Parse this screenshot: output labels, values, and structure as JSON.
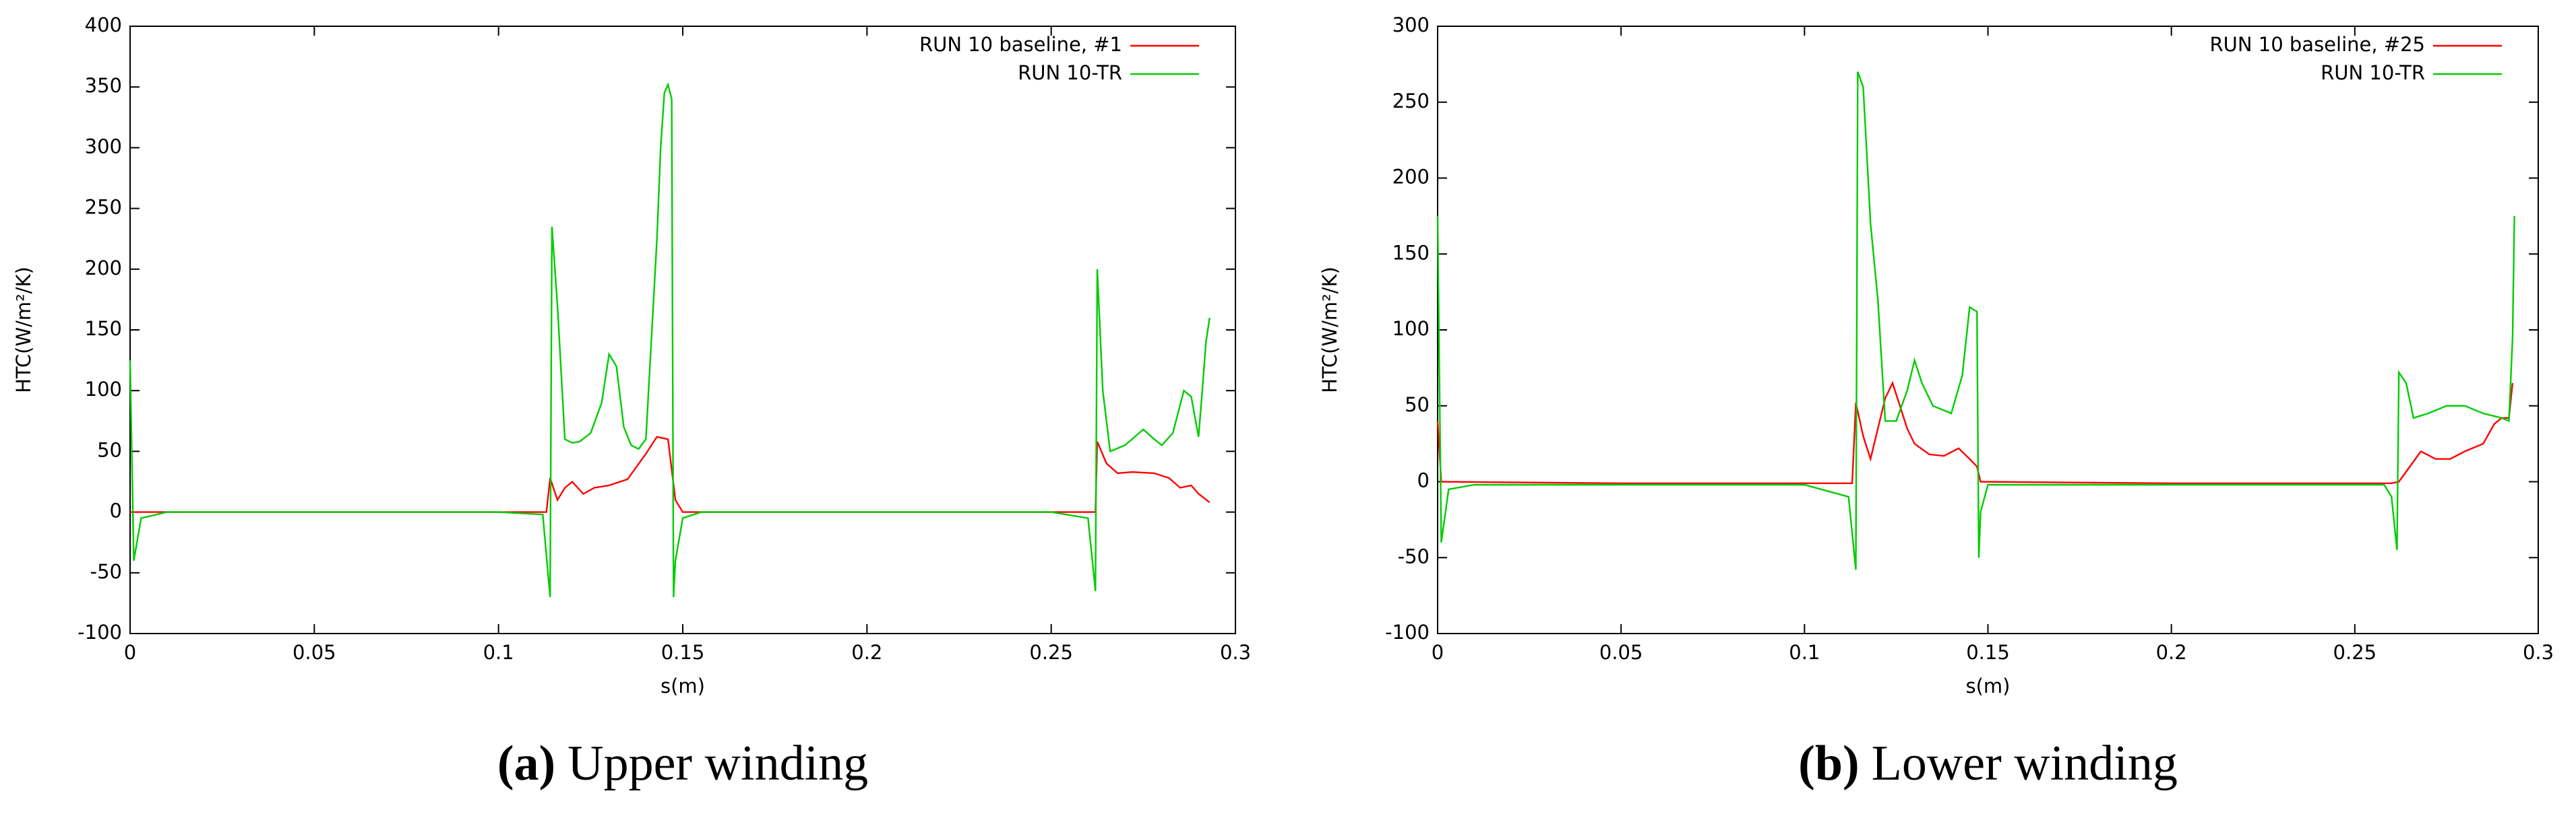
{
  "chart_data": [
    {
      "type": "line",
      "xlabel": "s(m)",
      "ylabel": "HTC(W/m²/K)",
      "caption": {
        "label": "(a)",
        "text": "Upper winding"
      },
      "xlim": [
        0,
        0.3
      ],
      "ylim": [
        -100,
        400
      ],
      "xticks": [
        0,
        0.05,
        0.1,
        0.15,
        0.2,
        0.25,
        0.3
      ],
      "yticks": [
        -100,
        -50,
        0,
        50,
        100,
        150,
        200,
        250,
        300,
        350,
        400
      ],
      "legend": "upper-right",
      "series": [
        {
          "name": "RUN 10 baseline, #1",
          "color": "#ff0000",
          "x": [
            0,
            0.05,
            0.1,
            0.113,
            0.114,
            0.116,
            0.118,
            0.12,
            0.123,
            0.126,
            0.13,
            0.135,
            0.14,
            0.143,
            0.146,
            0.147,
            0.148,
            0.15,
            0.2,
            0.26,
            0.262,
            0.2625,
            0.265,
            0.268,
            0.272,
            0.278,
            0.282,
            0.285,
            0.288,
            0.29,
            0.293
          ],
          "values": [
            0,
            0,
            0,
            0,
            28,
            10,
            20,
            25,
            15,
            20,
            22,
            27,
            48,
            62,
            60,
            35,
            10,
            0,
            0,
            0,
            0,
            58,
            40,
            32,
            33,
            32,
            28,
            20,
            22,
            15,
            8
          ]
        },
        {
          "name": "RUN 10-TR",
          "color": "#00cc00",
          "x": [
            0,
            0.001,
            0.003,
            0.01,
            0.05,
            0.1,
            0.112,
            0.114,
            0.1145,
            0.116,
            0.118,
            0.12,
            0.122,
            0.125,
            0.128,
            0.13,
            0.132,
            0.134,
            0.136,
            0.138,
            0.14,
            0.143,
            0.144,
            0.145,
            0.146,
            0.147,
            0.1475,
            0.148,
            0.15,
            0.155,
            0.2,
            0.25,
            0.26,
            0.262,
            0.2625,
            0.264,
            0.266,
            0.27,
            0.275,
            0.278,
            0.28,
            0.283,
            0.286,
            0.288,
            0.29,
            0.291,
            0.292,
            0.293
          ],
          "values": [
            125,
            -40,
            -5,
            0,
            0,
            0,
            -2,
            -70,
            235,
            170,
            60,
            57,
            58,
            65,
            90,
            130,
            120,
            70,
            55,
            52,
            60,
            225,
            300,
            345,
            352,
            340,
            -70,
            -40,
            -5,
            0,
            0,
            0,
            -5,
            -65,
            200,
            100,
            50,
            55,
            68,
            60,
            55,
            65,
            100,
            95,
            62,
            100,
            140,
            160
          ]
        }
      ]
    },
    {
      "type": "line",
      "xlabel": "s(m)",
      "ylabel": "HTC(W/m²/K)",
      "caption": {
        "label": "(b)",
        "text": "Lower winding"
      },
      "xlim": [
        0,
        0.3
      ],
      "ylim": [
        -100,
        300
      ],
      "xticks": [
        0,
        0.05,
        0.1,
        0.15,
        0.2,
        0.25,
        0.3
      ],
      "yticks": [
        -100,
        -50,
        0,
        50,
        100,
        150,
        200,
        250,
        300
      ],
      "legend": "upper-right",
      "series": [
        {
          "name": "RUN 10 baseline, #25",
          "color": "#ff0000",
          "x": [
            0,
            0.001,
            0.05,
            0.1,
            0.113,
            0.114,
            0.116,
            0.118,
            0.12,
            0.122,
            0.124,
            0.126,
            0.128,
            0.13,
            0.134,
            0.138,
            0.142,
            0.145,
            0.147,
            0.148,
            0.2,
            0.26,
            0.262,
            0.265,
            0.268,
            0.272,
            0.276,
            0.28,
            0.285,
            0.288,
            0.29,
            0.292,
            0.293
          ],
          "values": [
            40,
            0,
            -1,
            -1,
            -1,
            52,
            30,
            15,
            35,
            55,
            65,
            50,
            35,
            25,
            18,
            17,
            22,
            15,
            10,
            0,
            -1,
            -1,
            0,
            10,
            20,
            15,
            15,
            20,
            25,
            38,
            42,
            42,
            65
          ]
        },
        {
          "name": "RUN 10-TR",
          "color": "#00cc00",
          "x": [
            0,
            0.001,
            0.003,
            0.01,
            0.05,
            0.1,
            0.112,
            0.114,
            0.1145,
            0.116,
            0.117,
            0.118,
            0.12,
            0.122,
            0.125,
            0.128,
            0.13,
            0.132,
            0.135,
            0.14,
            0.143,
            0.145,
            0.147,
            0.1475,
            0.148,
            0.15,
            0.2,
            0.258,
            0.26,
            0.2615,
            0.262,
            0.264,
            0.266,
            0.27,
            0.275,
            0.28,
            0.285,
            0.29,
            0.292,
            0.293,
            0.2935
          ],
          "values": [
            175,
            -40,
            -5,
            -2,
            -2,
            -2,
            -10,
            -58,
            270,
            260,
            215,
            170,
            120,
            40,
            40,
            60,
            80,
            65,
            50,
            45,
            70,
            115,
            112,
            -50,
            -20,
            -2,
            -2,
            -2,
            -10,
            -45,
            72,
            65,
            42,
            45,
            50,
            50,
            45,
            42,
            40,
            95,
            175
          ]
        }
      ]
    }
  ]
}
